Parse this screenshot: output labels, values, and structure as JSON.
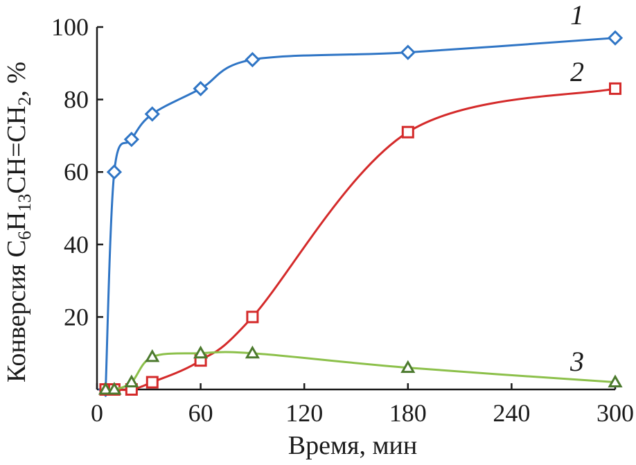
{
  "chart_data": {
    "type": "line",
    "xlabel": "Время, мин",
    "ylabel": "Конверсия C6H13CH=CH2, %",
    "ylabel_parts": [
      "Конверсия C",
      "6",
      "H",
      "13",
      "CH=CH",
      "2",
      ", %"
    ],
    "xlim": [
      0,
      300
    ],
    "ylim": [
      0,
      100
    ],
    "x_ticks": [
      0,
      60,
      120,
      180,
      240,
      300
    ],
    "y_ticks": [
      20,
      40,
      60,
      80,
      100
    ],
    "x_tick_labels": [
      "0",
      "60",
      "120",
      "180",
      "240",
      "300"
    ],
    "y_tick_labels": [
      "20",
      "40",
      "60",
      "80",
      "100"
    ],
    "grid": false,
    "series": [
      {
        "label": "1",
        "marker": "diamond",
        "color": "#2f75c5",
        "x": [
          5,
          10,
          20,
          32,
          60,
          90,
          180,
          300
        ],
        "y": [
          0,
          60,
          69,
          76,
          83,
          91,
          93,
          97
        ]
      },
      {
        "label": "2",
        "marker": "square",
        "color": "#d42a2a",
        "x": [
          5,
          10,
          20,
          32,
          60,
          90,
          180,
          300
        ],
        "y": [
          0,
          0,
          0,
          2,
          8,
          20,
          71,
          83
        ]
      },
      {
        "label": "3",
        "marker": "triangle",
        "color": "#4c7a2e",
        "line_color": "#8cc04a",
        "x": [
          5,
          10,
          20,
          32,
          60,
          90,
          180,
          300
        ],
        "y": [
          0,
          0,
          2,
          9,
          10,
          10,
          6,
          2
        ]
      }
    ]
  }
}
